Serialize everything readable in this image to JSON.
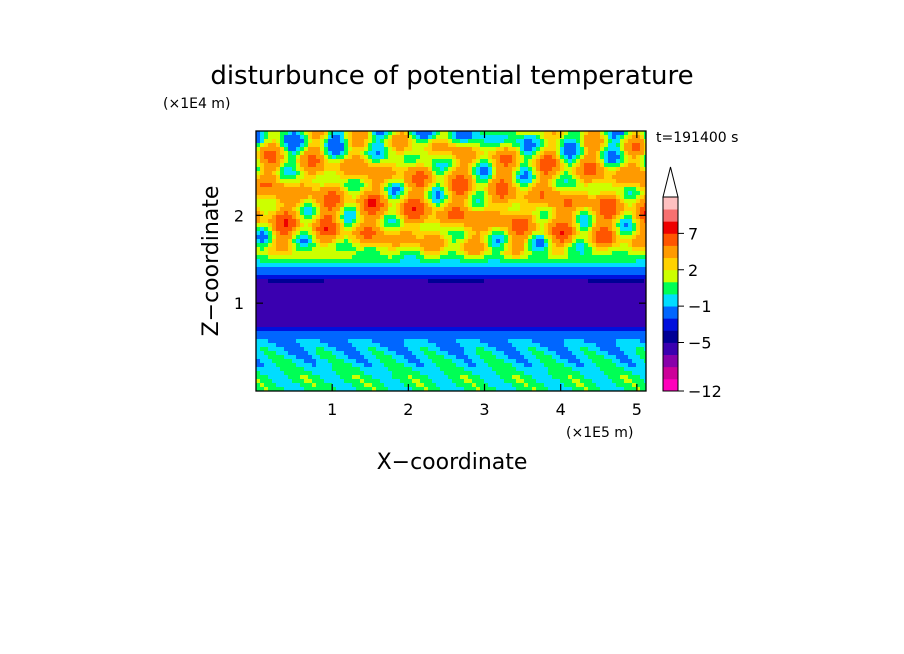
{
  "chart_data": {
    "type": "heatmap",
    "title": "disturbunce of potential temperature",
    "xlabel": "X−coordinate",
    "ylabel": "Z−coordinate",
    "x_unit": "(×1E5 m)",
    "y_unit": "(×1E4 m)",
    "time_label": "t=191400 s",
    "xlim": [
      0,
      5.12
    ],
    "ylim": [
      0,
      2.96
    ],
    "x_ticks": [
      1,
      2,
      3,
      4,
      5
    ],
    "x_tick_labels": [
      "1",
      "2",
      "3",
      "4",
      "5"
    ],
    "y_ticks": [
      1,
      2
    ],
    "y_tick_labels": [
      "1",
      "2"
    ],
    "colorbar": {
      "levels": [
        -12,
        -11,
        -9,
        -7,
        -5,
        -4,
        -3,
        -1,
        0,
        1,
        2,
        3,
        5,
        7,
        9,
        11
      ],
      "colors": [
        "#ff00bb",
        "#cc0099",
        "#8800aa",
        "#3a00b0",
        "#000095",
        "#0010dd",
        "#0066ff",
        "#00ddff",
        "#00ff55",
        "#ccff00",
        "#ffd200",
        "#ff9a00",
        "#ff5500",
        "#ee0000",
        "#f77070",
        "#ffc0c0"
      ],
      "labeled_levels": [
        "7",
        "2",
        "−1",
        "−5",
        "−12"
      ],
      "extend": "max"
    },
    "field_profile": {
      "z": [
        0.0,
        0.15,
        0.3,
        0.45,
        0.6,
        0.68,
        0.75,
        0.85,
        1.0,
        1.15,
        1.25,
        1.3,
        1.38,
        1.45,
        1.55,
        1.7,
        1.85,
        2.0,
        2.15,
        2.3,
        2.45,
        2.6,
        2.75,
        2.9
      ],
      "value": [
        0.2,
        0.3,
        -0.3,
        -0.6,
        -1.2,
        -3.0,
        -5.2,
        -5.8,
        -6.0,
        -5.8,
        -5.2,
        -3.5,
        -1.6,
        -0.3,
        1.3,
        2.5,
        3.0,
        3.4,
        3.3,
        2.6,
        2.8,
        2.3,
        1.8,
        0.6
      ]
    }
  }
}
